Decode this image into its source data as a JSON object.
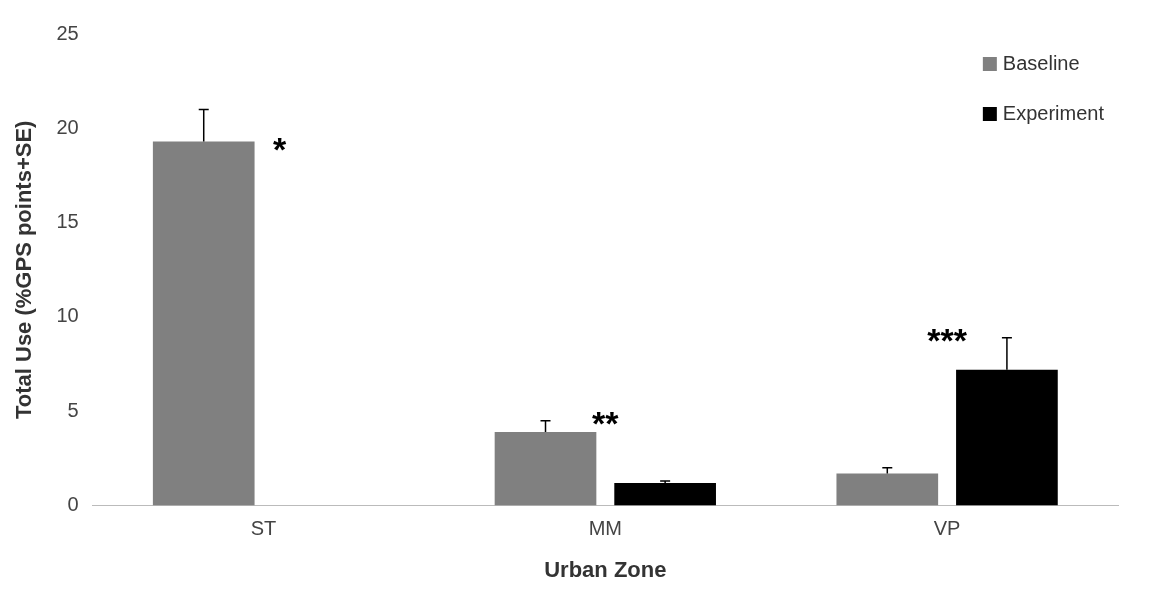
{
  "chart_data": {
    "type": "bar",
    "xlabel": "Urban Zone",
    "ylabel": "Total Use (%GPS points+SE)",
    "categories": [
      "ST",
      "MM",
      "VP"
    ],
    "series": [
      {
        "name": "Baseline",
        "color": "#808080",
        "values": [
          19.3,
          3.9,
          1.7
        ],
        "errors": [
          [
            19.3,
            21.0
          ],
          [
            3.9,
            4.5
          ],
          [
            1.7,
            2.0
          ]
        ]
      },
      {
        "name": "Experiment",
        "color": "#000000",
        "values": [
          0,
          1.2,
          7.2
        ],
        "errors": [
          null,
          [
            1.2,
            1.3
          ],
          [
            7.2,
            8.9
          ]
        ]
      }
    ],
    "ylim": [
      0,
      25
    ],
    "yticks": [
      0,
      5,
      10,
      15,
      20,
      25
    ],
    "legend": "top right",
    "annotations": [
      "*",
      "**",
      "***"
    ]
  }
}
